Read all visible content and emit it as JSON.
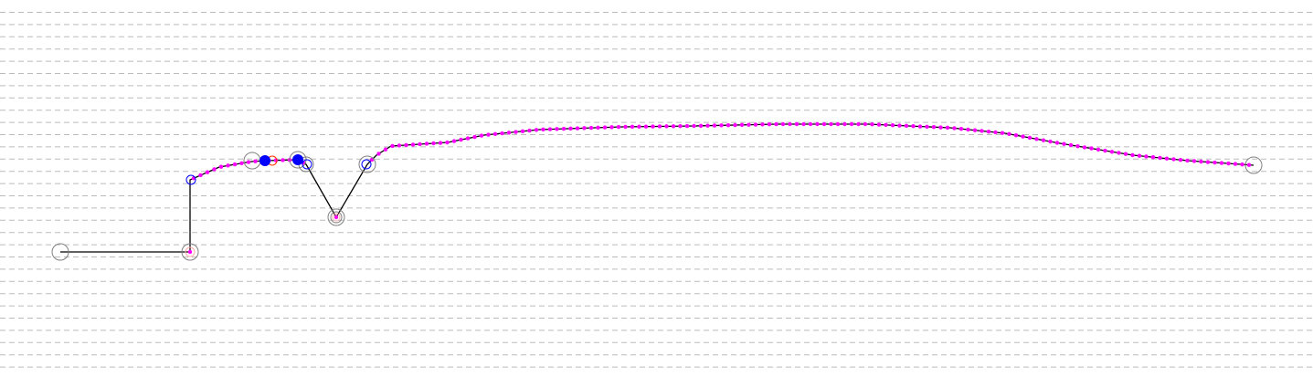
{
  "colors": {
    "background": "#ffffff",
    "grid": "#bbbbbb",
    "path": "#000000",
    "sample_point": "#ff00ff",
    "waypoint_ring": "#808080",
    "waypoint_inner": "#0000ff",
    "highlight_point": "#0000ff",
    "alt_ring": "#ff3300",
    "pink_ring": "#ffaaaa"
  },
  "marker_types": [
    "start-ring",
    "waypoint-ring",
    "highlight-dot",
    "sample-dot",
    "end-ring"
  ]
}
